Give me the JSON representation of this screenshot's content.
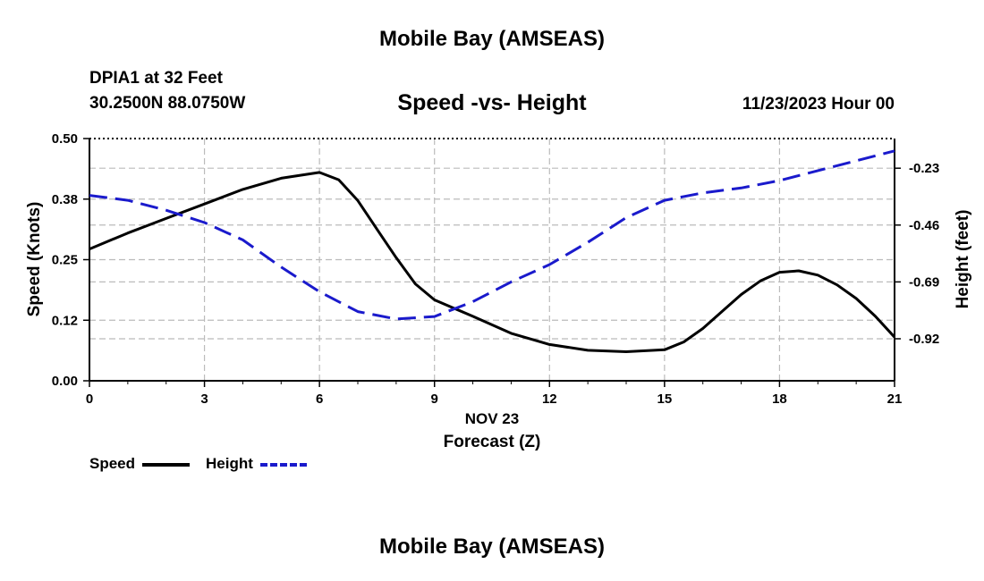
{
  "header": {
    "title_top": "Mobile Bay (AMSEAS)",
    "station": "DPIA1 at 32 Feet",
    "coords": "30.2500N  88.0750W",
    "subtitle": "Speed -vs- Height",
    "datetime": "11/23/2023 Hour 00",
    "title_bottom": "Mobile Bay (AMSEAS)"
  },
  "legend": {
    "speed_label": "Speed",
    "height_label": "Height"
  },
  "colors": {
    "speed": "#000000",
    "height": "#1a1acc",
    "grid": "#bbbbbb"
  },
  "chart_data": {
    "type": "line",
    "title": "Speed -vs- Height",
    "xlabel": "Forecast (Z)",
    "xlabel_date": "NOV 23",
    "ylabel": "Speed (Knots)",
    "y2label": "Height (feet)",
    "xlim": [
      0,
      21
    ],
    "ylim": [
      0,
      0.5
    ],
    "y2lim": [
      -1.09,
      -0.11
    ],
    "x_ticks": [
      0,
      3,
      6,
      9,
      12,
      15,
      18,
      21
    ],
    "y_ticks": [
      0.0,
      0.125,
      0.25,
      0.375,
      0.5
    ],
    "y_tick_labels": [
      "0.00",
      "0.12",
      "0.25",
      "0.38",
      "0.50"
    ],
    "y2_ticks": [
      -0.23,
      -0.46,
      -0.69,
      -0.92
    ],
    "y2_tick_labels": [
      "-0.23",
      "-0.46",
      "-0.69",
      "-0.92"
    ],
    "grid": true,
    "series": [
      {
        "name": "Speed",
        "axis": "left",
        "style": "solid",
        "x": [
          0,
          1,
          2,
          3,
          4,
          5,
          6,
          6.5,
          7,
          7.5,
          8,
          8.5,
          9,
          10,
          11,
          12,
          13,
          14,
          15,
          15.5,
          16,
          16.5,
          17,
          17.5,
          18,
          18.5,
          19,
          19.5,
          20,
          20.5,
          21
        ],
        "values": [
          0.272,
          0.305,
          0.335,
          0.365,
          0.395,
          0.418,
          0.43,
          0.415,
          0.372,
          0.313,
          0.254,
          0.2,
          0.167,
          0.133,
          0.098,
          0.075,
          0.063,
          0.06,
          0.064,
          0.08,
          0.108,
          0.143,
          0.178,
          0.206,
          0.224,
          0.227,
          0.218,
          0.198,
          0.17,
          0.133,
          0.09
        ]
      },
      {
        "name": "Height",
        "axis": "right",
        "style": "dashed",
        "x": [
          0,
          1,
          2,
          3,
          4,
          5,
          6,
          7,
          8,
          9,
          10,
          11,
          12,
          13,
          14,
          15,
          16,
          17,
          18,
          19,
          20,
          21
        ],
        "values": [
          -0.34,
          -0.36,
          -0.4,
          -0.45,
          -0.52,
          -0.63,
          -0.73,
          -0.81,
          -0.84,
          -0.83,
          -0.77,
          -0.69,
          -0.62,
          -0.53,
          -0.43,
          -0.36,
          -0.33,
          -0.31,
          -0.28,
          -0.24,
          -0.2,
          -0.16
        ]
      }
    ]
  }
}
